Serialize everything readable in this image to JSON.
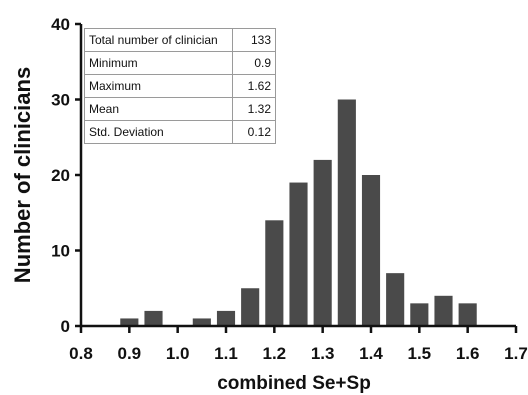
{
  "chart_data": {
    "type": "bar",
    "xlabel": "combined Se+Sp",
    "ylabel": "Number of clinicians",
    "xlim": [
      0.8,
      1.7
    ],
    "ylim": [
      0,
      40
    ],
    "x_ticks": [
      "0.8",
      "0.9",
      "1.0",
      "1.1",
      "1.2",
      "1.3",
      "1.4",
      "1.5",
      "1.6",
      "1.7"
    ],
    "y_ticks": [
      "0",
      "10",
      "20",
      "30",
      "40"
    ],
    "bin_width": 0.05,
    "x": [
      0.9,
      0.95,
      1.05,
      1.1,
      1.15,
      1.2,
      1.25,
      1.3,
      1.35,
      1.4,
      1.45,
      1.5,
      1.55,
      1.6
    ],
    "values": [
      1,
      2,
      1,
      2,
      5,
      14,
      19,
      22,
      30,
      20,
      7,
      3,
      4,
      3
    ],
    "grid": false,
    "legend": "none",
    "bar_color": "#4a4a4a"
  },
  "stats_table": [
    {
      "label": "Total number of clinician",
      "value": "133"
    },
    {
      "label": "Minimum",
      "value": "0.9"
    },
    {
      "label": "Maximum",
      "value": "1.62"
    },
    {
      "label": "Mean",
      "value": "1.32"
    },
    {
      "label": "Std. Deviation",
      "value": "0.12"
    }
  ]
}
